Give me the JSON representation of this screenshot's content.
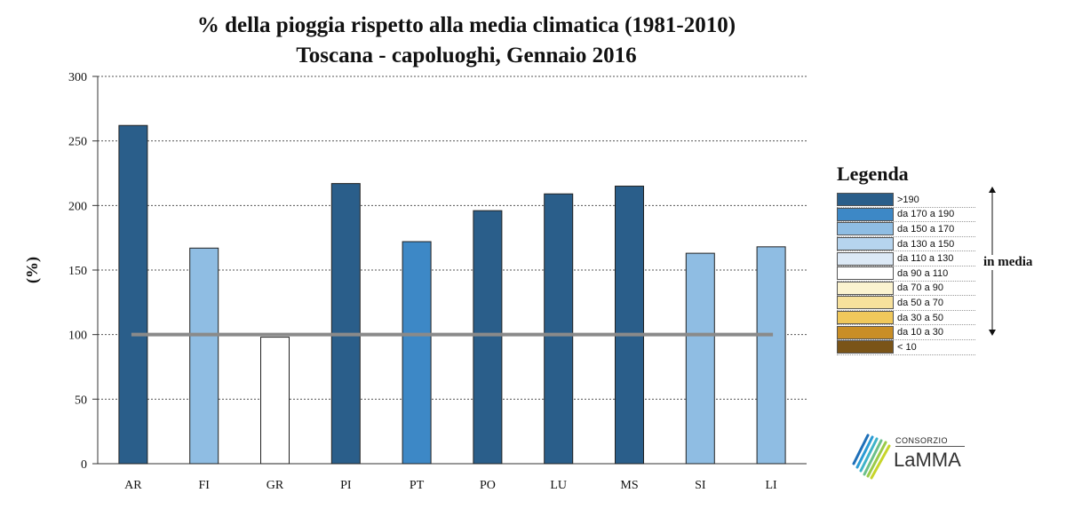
{
  "chart_data": {
    "type": "bar",
    "title": "%  della pioggia rispetto alla media climatica (1981-2010)",
    "subtitle": "Toscana - capoluoghi, Gennaio 2016",
    "ylabel": "(%)",
    "xlabel": "",
    "ylim": [
      0,
      300
    ],
    "yticks": [
      0,
      50,
      100,
      150,
      200,
      250,
      300
    ],
    "grid": true,
    "reference_line": 100,
    "categories": [
      "AR",
      "FI",
      "GR",
      "PI",
      "PT",
      "PO",
      "LU",
      "MS",
      "SI",
      "LI"
    ],
    "values": [
      262,
      167,
      98,
      217,
      172,
      196,
      209,
      215,
      163,
      168
    ],
    "legend": {
      "title": "Legenda",
      "placement": "right",
      "entries": [
        {
          "label": ">190",
          "color": "#2a5e8a"
        },
        {
          "label": "da 170 a 190",
          "color": "#3d88c6"
        },
        {
          "label": "da 150 a 170",
          "color": "#8fbde3"
        },
        {
          "label": "da 130 a 150",
          "color": "#b6d4ee"
        },
        {
          "label": "da 110 a 130",
          "color": "#dce9f6"
        },
        {
          "label": "da 90 a 110",
          "color": "#ffffff"
        },
        {
          "label": "da 70 a 90",
          "color": "#fbf3d0"
        },
        {
          "label": "da 50 a 70",
          "color": "#f7e19c"
        },
        {
          "label": "da 30 a 50",
          "color": "#f0c85b"
        },
        {
          "label": "da 10 a 30",
          "color": "#c98e26"
        },
        {
          "label": "< 10",
          "color": "#7a5418"
        }
      ],
      "side_note": "in media"
    }
  },
  "branding": {
    "small": "CONSORZIO",
    "big": "LaMMA"
  }
}
